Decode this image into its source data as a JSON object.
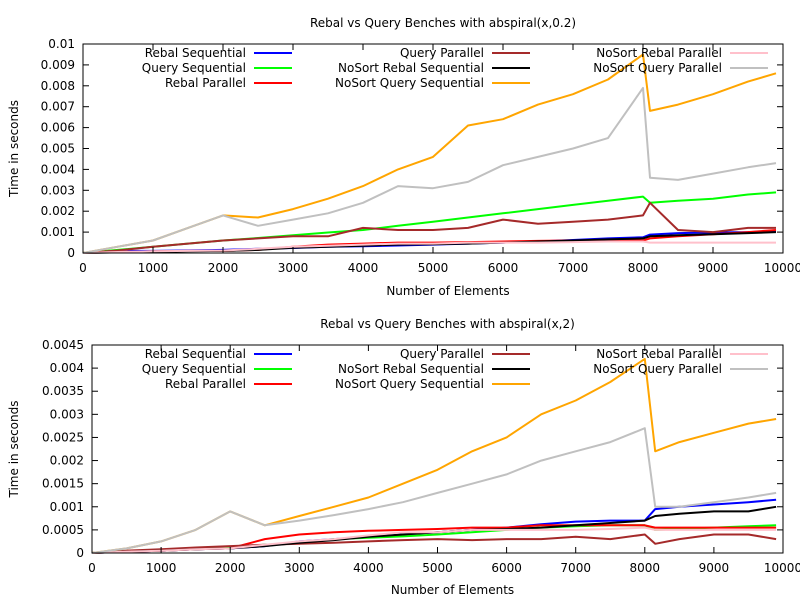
{
  "chart_data": [
    {
      "type": "line",
      "title": "Rebal vs Query Benches with abspiral(x,0.2)",
      "xlabel": "Number of Elements",
      "ylabel": "Time in seconds",
      "xlim": [
        0,
        10000
      ],
      "ylim": [
        0,
        0.01
      ],
      "x_ticks": [
        "0",
        "1000",
        "2000",
        "3000",
        "4000",
        "5000",
        "6000",
        "7000",
        "8000",
        "9000",
        "10000"
      ],
      "y_ticks": [
        "0",
        "0.001",
        "0.002",
        "0.003",
        "0.004",
        "0.005",
        "0.006",
        "0.007",
        "0.008",
        "0.009",
        "0.01"
      ],
      "grid": false,
      "legend_position": "top",
      "x": [
        0,
        500,
        1000,
        1500,
        2000,
        2500,
        3000,
        3500,
        4000,
        4500,
        5000,
        5500,
        6000,
        6500,
        7000,
        7500,
        8000,
        8100,
        8500,
        9000,
        9500,
        9900
      ],
      "series": [
        {
          "name": "Rebal Sequential",
          "color": "#0000ff",
          "values": [
            0,
            0.0001,
            0.0001,
            0.00012,
            0.00015,
            0.0002,
            0.00024,
            0.0003,
            0.00032,
            0.00036,
            0.0004,
            0.00045,
            0.0005,
            0.00055,
            0.00062,
            0.0007,
            0.00075,
            0.00088,
            0.00095,
            0.00098,
            0.001,
            0.00105
          ]
        },
        {
          "name": "Query Sequential",
          "color": "#00ff00",
          "values": [
            0,
            0.00015,
            0.0003,
            0.00045,
            0.0006,
            0.00072,
            0.00085,
            0.00098,
            0.0011,
            0.0013,
            0.0015,
            0.0017,
            0.0019,
            0.0021,
            0.0023,
            0.0025,
            0.0027,
            0.0024,
            0.0025,
            0.0026,
            0.0028,
            0.0029
          ]
        },
        {
          "name": "Rebal Parallel",
          "color": "#ff0000",
          "values": [
            0,
            5e-05,
            8e-05,
            0.0001,
            0.0001,
            0.00015,
            0.0003,
            0.0004,
            0.00045,
            0.0005,
            0.0005,
            0.00052,
            0.00055,
            0.00058,
            0.0006,
            0.0006,
            0.0006,
            0.0007,
            0.0008,
            0.0009,
            0.001,
            0.0011
          ]
        },
        {
          "name": "Query Parallel",
          "color": "#a52a2a",
          "values": [
            0,
            0.00012,
            0.0003,
            0.00045,
            0.0006,
            0.0007,
            0.0008,
            0.0008,
            0.0012,
            0.0011,
            0.0011,
            0.0012,
            0.0016,
            0.0014,
            0.0015,
            0.0016,
            0.0018,
            0.0024,
            0.0011,
            0.001,
            0.0012,
            0.0012
          ]
        },
        {
          "name": "NoSort Rebal Sequential",
          "color": "#000000",
          "values": [
            0,
            3e-05,
            5e-05,
            8e-05,
            0.0001,
            0.00015,
            0.00025,
            0.0003,
            0.00035,
            0.0004,
            0.00042,
            0.00045,
            0.0005,
            0.00055,
            0.0006,
            0.00065,
            0.0007,
            0.0008,
            0.00085,
            0.0009,
            0.00095,
            0.001
          ]
        },
        {
          "name": "NoSort Query Sequential",
          "color": "#ffa500",
          "values": [
            0,
            0.0003,
            0.0006,
            0.0012,
            0.0018,
            0.0017,
            0.0021,
            0.0026,
            0.0032,
            0.004,
            0.0046,
            0.0061,
            0.0064,
            0.0071,
            0.0076,
            0.0083,
            0.0095,
            0.0068,
            0.0071,
            0.0076,
            0.0082,
            0.0086
          ]
        },
        {
          "name": "NoSort Rebal Parallel",
          "color": "#ffc0cb",
          "values": [
            0,
            5e-05,
            8e-05,
            0.0001,
            0.00012,
            0.0002,
            0.0003,
            0.00035,
            0.0004,
            0.00045,
            0.00045,
            0.0005,
            0.0005,
            0.0005,
            0.00052,
            0.00055,
            0.00055,
            0.0005,
            0.0005,
            0.0005,
            0.0005,
            0.0005
          ]
        },
        {
          "name": "NoSort Query Parallel",
          "color": "#c0c0c0",
          "values": [
            0,
            0.0003,
            0.0006,
            0.0012,
            0.0018,
            0.0013,
            0.0016,
            0.0019,
            0.0024,
            0.0032,
            0.0031,
            0.0034,
            0.0042,
            0.0046,
            0.005,
            0.0055,
            0.0079,
            0.0036,
            0.0035,
            0.0038,
            0.0041,
            0.0043
          ]
        }
      ]
    },
    {
      "type": "line",
      "title": "Rebal vs Query Benches with abspiral(x,2)",
      "xlabel": "Number of Elements",
      "ylabel": "Time in seconds",
      "xlim": [
        0,
        10000
      ],
      "ylim": [
        0,
        0.0045
      ],
      "x_ticks": [
        "0",
        "1000",
        "2000",
        "3000",
        "4000",
        "5000",
        "6000",
        "7000",
        "8000",
        "9000",
        "10000"
      ],
      "y_ticks": [
        "0",
        "0.0005",
        "0.001",
        "0.0015",
        "0.002",
        "0.0025",
        "0.003",
        "0.0035",
        "0.004",
        "0.0045"
      ],
      "grid": false,
      "legend_position": "top",
      "x": [
        0,
        500,
        1000,
        1500,
        2000,
        2500,
        3000,
        3500,
        4000,
        4500,
        5000,
        5500,
        6000,
        6500,
        7000,
        7500,
        8000,
        8150,
        8500,
        9000,
        9500,
        9900
      ],
      "series": [
        {
          "name": "Rebal Sequential",
          "color": "#0000ff",
          "values": [
            0,
            3e-05,
            5e-05,
            8e-05,
            0.0001,
            0.00015,
            0.00025,
            0.0003,
            0.00035,
            0.0004,
            0.00045,
            0.0005,
            0.00055,
            0.00062,
            0.00068,
            0.0007,
            0.0007,
            0.00095,
            0.001,
            0.00105,
            0.0011,
            0.00115
          ]
        },
        {
          "name": "Query Sequential",
          "color": "#00ff00",
          "values": [
            0,
            4e-05,
            6e-05,
            0.0001,
            0.00012,
            0.00018,
            0.00022,
            0.0003,
            0.00033,
            0.00036,
            0.0004,
            0.00045,
            0.0005,
            0.00055,
            0.00058,
            0.0006,
            0.0006,
            0.0005,
            0.00052,
            0.00055,
            0.00058,
            0.0006
          ]
        },
        {
          "name": "Rebal Parallel",
          "color": "#ff0000",
          "values": [
            0,
            3e-05,
            5e-05,
            8e-05,
            0.0001,
            0.0003,
            0.0004,
            0.00045,
            0.00048,
            0.0005,
            0.00052,
            0.00055,
            0.00055,
            0.0006,
            0.0006,
            0.0006,
            0.0006,
            0.00055,
            0.00055,
            0.00055,
            0.00055,
            0.00055
          ]
        },
        {
          "name": "Query Parallel",
          "color": "#a52a2a",
          "values": [
            0,
            5e-05,
            8e-05,
            0.00012,
            0.00015,
            0.00018,
            0.0002,
            0.00022,
            0.00025,
            0.00028,
            0.0003,
            0.00028,
            0.0003,
            0.0003,
            0.00035,
            0.0003,
            0.0004,
            0.0002,
            0.0003,
            0.0004,
            0.0004,
            0.0003
          ]
        },
        {
          "name": "NoSort Rebal Sequential",
          "color": "#000000",
          "values": [
            0,
            3e-05,
            5e-05,
            8e-05,
            0.0001,
            0.00015,
            0.00022,
            0.00028,
            0.00035,
            0.0004,
            0.00045,
            0.0005,
            0.00052,
            0.00055,
            0.0006,
            0.00065,
            0.0007,
            0.0008,
            0.00085,
            0.0009,
            0.0009,
            0.001
          ]
        },
        {
          "name": "NoSort Query Sequential",
          "color": "#ffa500",
          "values": [
            0,
            0.0001,
            0.00025,
            0.0005,
            0.0009,
            0.0006,
            0.0008,
            0.001,
            0.0012,
            0.0015,
            0.0018,
            0.0022,
            0.0025,
            0.003,
            0.0033,
            0.0037,
            0.0042,
            0.0022,
            0.0024,
            0.0026,
            0.0028,
            0.0029
          ]
        },
        {
          "name": "NoSort Rebal Parallel",
          "color": "#ffc0cb",
          "values": [
            0,
            3e-05,
            5e-05,
            8e-05,
            0.0001,
            0.00018,
            0.00025,
            0.0003,
            0.00038,
            0.00045,
            0.00045,
            0.0005,
            0.0005,
            0.0005,
            0.0005,
            0.00052,
            0.00055,
            0.0005,
            0.0005,
            0.0005,
            0.0005,
            0.0005
          ]
        },
        {
          "name": "NoSort Query Parallel",
          "color": "#c0c0c0",
          "values": [
            0,
            0.0001,
            0.00025,
            0.0005,
            0.0009,
            0.0006,
            0.0007,
            0.00082,
            0.00095,
            0.0011,
            0.0013,
            0.0015,
            0.0017,
            0.002,
            0.0022,
            0.0024,
            0.0027,
            0.001,
            0.001,
            0.0011,
            0.0012,
            0.0013
          ]
        }
      ]
    }
  ]
}
